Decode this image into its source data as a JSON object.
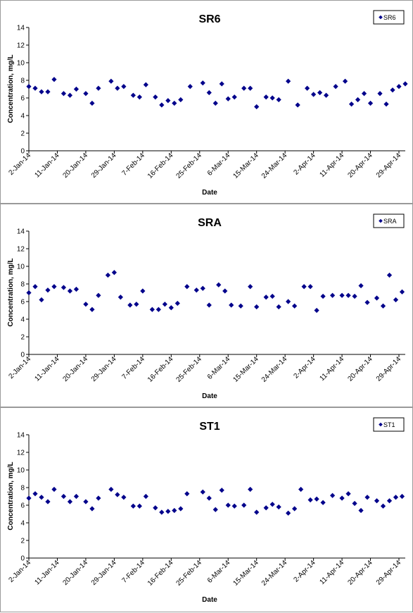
{
  "chart_data": [
    {
      "type": "scatter",
      "title": "SR6",
      "xlabel": "Date",
      "ylabel": "Concentration, mg/L",
      "ylim": [
        0,
        14
      ],
      "yticks": [
        0,
        2,
        4,
        6,
        8,
        10,
        12,
        14
      ],
      "xlim": [
        "2014-01-02",
        "2014-05-01"
      ],
      "xtick_labels": [
        "2-Jan-14",
        "11-Jan-14",
        "20-Jan-14",
        "29-Jan-14",
        "7-Feb-14",
        "16-Feb-14",
        "25-Feb-14",
        "6-Mar-14",
        "15-Mar-14",
        "24-Mar-14",
        "2-Apr-14",
        "11-Apr-14",
        "20-Apr-14",
        "29-Apr-14"
      ],
      "legend": "top-right",
      "grid": false,
      "series": [
        {
          "name": "SR6",
          "color": "#00008B",
          "x": [
            "2014-01-02",
            "2014-01-04",
            "2014-01-06",
            "2014-01-08",
            "2014-01-10",
            "2014-01-13",
            "2014-01-15",
            "2014-01-17",
            "2014-01-20",
            "2014-01-22",
            "2014-01-24",
            "2014-01-28",
            "2014-01-30",
            "2014-02-01",
            "2014-02-04",
            "2014-02-06",
            "2014-02-08",
            "2014-02-11",
            "2014-02-13",
            "2014-02-15",
            "2014-02-17",
            "2014-02-19",
            "2014-02-22",
            "2014-02-26",
            "2014-02-28",
            "2014-03-02",
            "2014-03-04",
            "2014-03-06",
            "2014-03-08",
            "2014-03-11",
            "2014-03-13",
            "2014-03-15",
            "2014-03-18",
            "2014-03-20",
            "2014-03-22",
            "2014-03-25",
            "2014-03-28",
            "2014-03-31",
            "2014-04-02",
            "2014-04-04",
            "2014-04-06",
            "2014-04-09",
            "2014-04-12",
            "2014-04-14",
            "2014-04-16",
            "2014-04-18",
            "2014-04-20",
            "2014-04-23",
            "2014-04-25",
            "2014-04-27",
            "2014-04-29",
            "2014-05-01"
          ],
          "y": [
            7.3,
            7.1,
            6.7,
            6.7,
            8.1,
            6.5,
            6.3,
            7.0,
            6.5,
            5.4,
            7.1,
            7.9,
            7.1,
            7.3,
            6.3,
            6.1,
            7.5,
            6.1,
            5.2,
            5.7,
            5.4,
            5.8,
            7.3,
            7.7,
            6.6,
            5.4,
            7.6,
            5.9,
            6.1,
            7.1,
            7.1,
            5.0,
            6.1,
            6.0,
            5.8,
            7.9,
            5.2,
            7.1,
            6.4,
            6.6,
            6.3,
            7.3,
            7.9,
            5.3,
            5.8,
            6.5,
            5.4,
            6.5,
            5.3,
            6.9,
            7.3,
            7.6
          ]
        }
      ]
    },
    {
      "type": "scatter",
      "title": "SRA",
      "xlabel": "Date",
      "ylabel": "Concentration, mg/L",
      "ylim": [
        0,
        14
      ],
      "yticks": [
        0,
        2,
        4,
        6,
        8,
        10,
        12,
        14
      ],
      "xlim": [
        "2014-01-02",
        "2014-05-01"
      ],
      "xtick_labels": [
        "2-Jan-14",
        "11-Jan-14",
        "20-Jan-14",
        "29-Jan-14",
        "7-Feb-14",
        "16-Feb-14",
        "25-Feb-14",
        "6-Mar-14",
        "15-Mar-14",
        "24-Mar-14",
        "2-Apr-14",
        "11-Apr-14",
        "20-Apr-14",
        "29-Apr-14"
      ],
      "legend": "top-right",
      "grid": false,
      "series": [
        {
          "name": "SRA",
          "color": "#00008B",
          "x": [
            "2014-01-02",
            "2014-01-04",
            "2014-01-06",
            "2014-01-08",
            "2014-01-10",
            "2014-01-13",
            "2014-01-15",
            "2014-01-17",
            "2014-01-20",
            "2014-01-22",
            "2014-01-24",
            "2014-01-27",
            "2014-01-29",
            "2014-01-31",
            "2014-02-03",
            "2014-02-05",
            "2014-02-07",
            "2014-02-10",
            "2014-02-12",
            "2014-02-14",
            "2014-02-16",
            "2014-02-18",
            "2014-02-21",
            "2014-02-24",
            "2014-02-26",
            "2014-02-28",
            "2014-03-03",
            "2014-03-05",
            "2014-03-07",
            "2014-03-10",
            "2014-03-13",
            "2014-03-15",
            "2014-03-18",
            "2014-03-20",
            "2014-03-22",
            "2014-03-25",
            "2014-03-27",
            "2014-03-30",
            "2014-04-01",
            "2014-04-03",
            "2014-04-05",
            "2014-04-08",
            "2014-04-11",
            "2014-04-13",
            "2014-04-15",
            "2014-04-17",
            "2014-04-19",
            "2014-04-22",
            "2014-04-24",
            "2014-04-26",
            "2014-04-28",
            "2014-04-30"
          ],
          "y": [
            7.0,
            7.7,
            6.2,
            7.3,
            7.7,
            7.6,
            7.2,
            7.4,
            5.7,
            5.1,
            6.7,
            9.0,
            9.3,
            6.5,
            5.6,
            5.7,
            7.2,
            5.1,
            5.1,
            5.7,
            5.3,
            5.8,
            7.7,
            7.3,
            7.5,
            5.6,
            7.9,
            7.2,
            5.6,
            5.5,
            7.7,
            5.4,
            6.5,
            6.6,
            5.4,
            6.0,
            5.5,
            7.7,
            7.7,
            5.0,
            6.6,
            6.7,
            6.7,
            6.7,
            6.6,
            7.8,
            5.9,
            6.4,
            5.5,
            9.0,
            6.2,
            7.1
          ]
        }
      ]
    },
    {
      "type": "scatter",
      "title": "ST1",
      "xlabel": "Date",
      "ylabel": "Concentration, mg/L",
      "ylim": [
        0,
        14
      ],
      "yticks": [
        0,
        2,
        4,
        6,
        8,
        10,
        12,
        14
      ],
      "xlim": [
        "2014-01-02",
        "2014-05-01"
      ],
      "xtick_labels": [
        "2-Jan-14",
        "11-Jan-14",
        "20-Jan-14",
        "29-Jan-14",
        "7-Feb-14",
        "16-Feb-14",
        "25-Feb-14",
        "6-Mar-14",
        "15-Mar-14",
        "24-Mar-14",
        "2-Apr-14",
        "11-Apr-14",
        "20-Apr-14",
        "29-Apr-14"
      ],
      "legend": "top-right",
      "grid": false,
      "series": [
        {
          "name": "ST1",
          "color": "#00008B",
          "x": [
            "2014-01-02",
            "2014-01-04",
            "2014-01-06",
            "2014-01-08",
            "2014-01-10",
            "2014-01-13",
            "2014-01-15",
            "2014-01-17",
            "2014-01-20",
            "2014-01-22",
            "2014-01-24",
            "2014-01-28",
            "2014-01-30",
            "2014-02-01",
            "2014-02-04",
            "2014-02-06",
            "2014-02-08",
            "2014-02-11",
            "2014-02-13",
            "2014-02-15",
            "2014-02-17",
            "2014-02-19",
            "2014-02-21",
            "2014-02-26",
            "2014-02-28",
            "2014-03-02",
            "2014-03-04",
            "2014-03-06",
            "2014-03-08",
            "2014-03-11",
            "2014-03-13",
            "2014-03-15",
            "2014-03-18",
            "2014-03-20",
            "2014-03-22",
            "2014-03-25",
            "2014-03-27",
            "2014-03-29",
            "2014-04-01",
            "2014-04-03",
            "2014-04-05",
            "2014-04-08",
            "2014-04-11",
            "2014-04-13",
            "2014-04-15",
            "2014-04-17",
            "2014-04-19",
            "2014-04-22",
            "2014-04-24",
            "2014-04-26",
            "2014-04-28",
            "2014-04-30"
          ],
          "y": [
            6.8,
            7.3,
            6.9,
            6.4,
            7.8,
            7.0,
            6.4,
            7.0,
            6.4,
            5.6,
            6.8,
            7.8,
            7.2,
            6.9,
            5.9,
            5.9,
            7.0,
            5.7,
            5.2,
            5.3,
            5.4,
            5.6,
            7.3,
            7.5,
            6.8,
            5.5,
            7.7,
            6.0,
            5.9,
            6.0,
            7.8,
            5.2,
            5.7,
            6.1,
            5.8,
            5.1,
            5.6,
            7.8,
            6.6,
            6.7,
            6.3,
            7.1,
            6.8,
            7.3,
            6.2,
            5.4,
            6.9,
            6.5,
            5.9,
            6.5,
            6.9,
            7.0
          ]
        }
      ]
    }
  ]
}
